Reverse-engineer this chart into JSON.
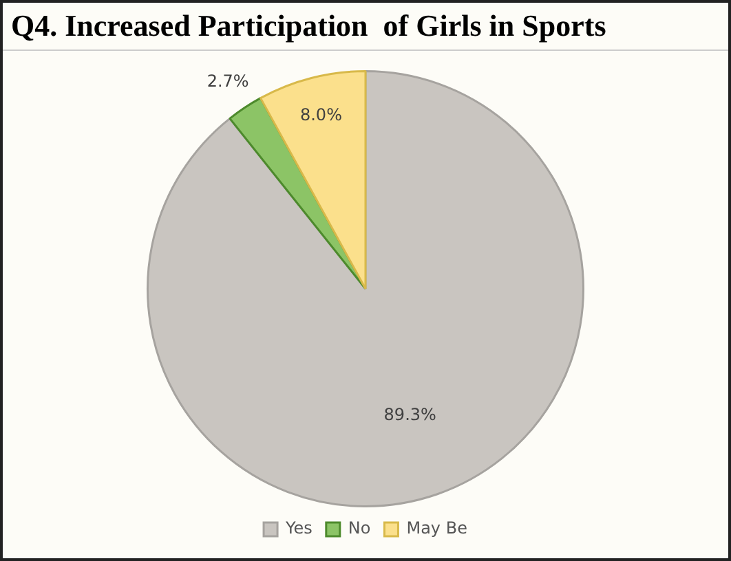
{
  "chart_data": {
    "type": "pie",
    "title": "Q4. Increased Participation  of Girls in Sports",
    "categories": [
      "Yes",
      "No",
      "May Be"
    ],
    "values": [
      89.3,
      2.7,
      8.0
    ],
    "colors": [
      "#c9c5c0",
      "#8cc466",
      "#fbe08c"
    ],
    "value_labels": [
      "89.3%",
      "2.7%",
      "8.0%"
    ],
    "legend": "bottom"
  }
}
